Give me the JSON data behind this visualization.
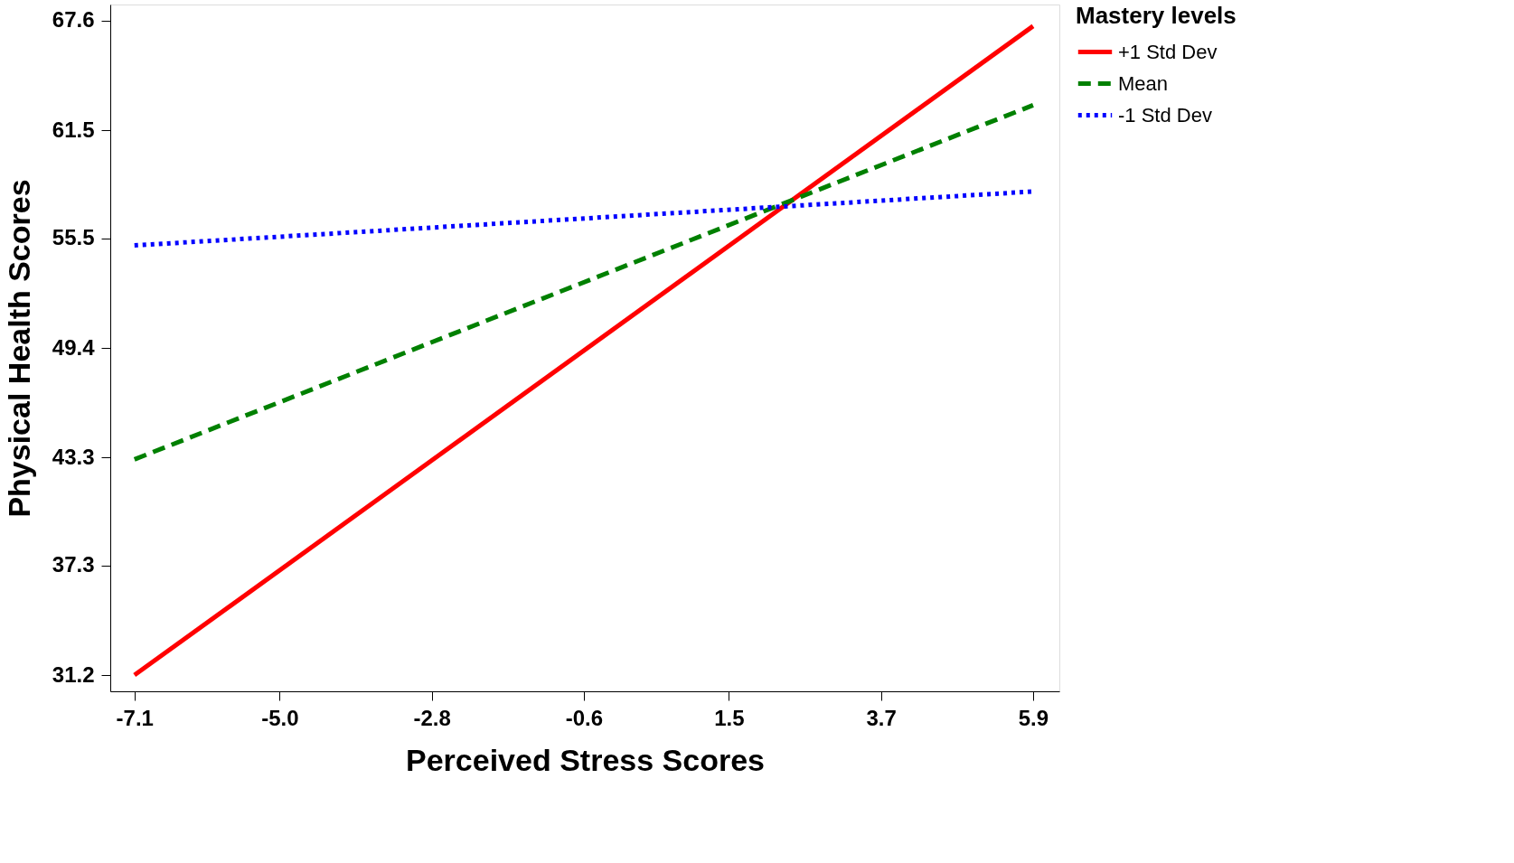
{
  "chart_data": {
    "type": "line",
    "xlabel": "Perceived Stress Scores",
    "ylabel": "Physical Health Scores",
    "legend_title": "Mastery levels",
    "legend": "top right",
    "grid": false,
    "xlim": [
      -7.45,
      6.28
    ],
    "ylim": [
      30.3,
      68.5
    ],
    "xticks": [
      -7.1,
      {
        "value": -5,
        "label": "-5.0"
      },
      -2.8,
      -0.6,
      1.5,
      3.7,
      5.9
    ],
    "yticks": [
      31.2,
      37.3,
      43.3,
      49.4,
      55.5,
      61.5,
      67.6
    ],
    "x": [
      -7.1,
      5.9
    ],
    "series": [
      {
        "name": "+1 Std Dev",
        "color": "#ff0000",
        "line_style": "solid",
        "values": [
          31.2,
          67.3
        ]
      },
      {
        "name": "Mean",
        "color": "#008000",
        "line_style": "dashed",
        "values": [
          43.2,
          62.9
        ]
      },
      {
        "name": "-1 Std Dev",
        "color": "#0000ff",
        "line_style": "dotted",
        "values": [
          55.1,
          58.1
        ]
      }
    ]
  }
}
